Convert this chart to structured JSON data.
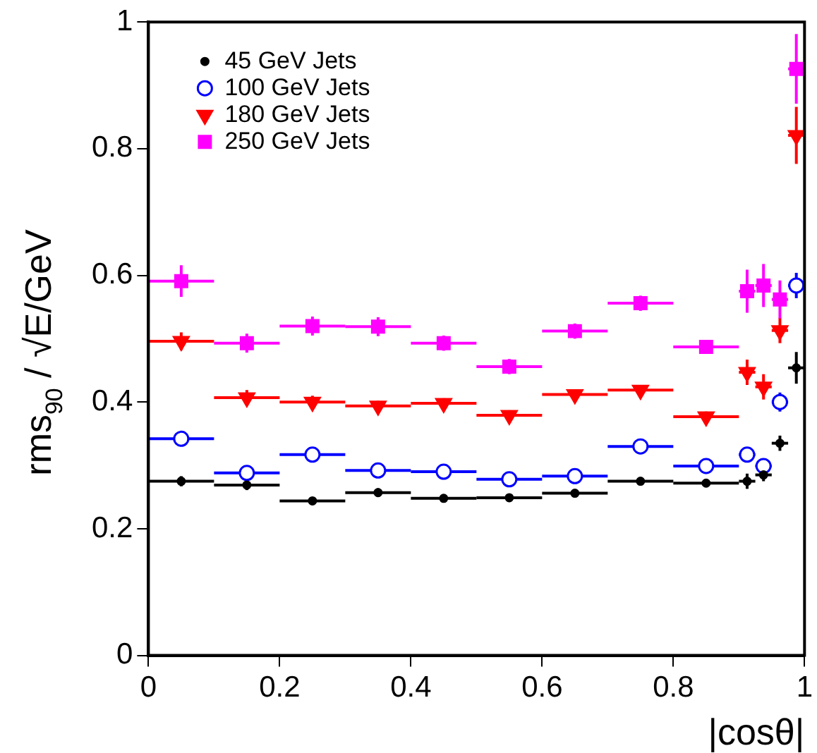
{
  "chart_data": {
    "type": "scatter",
    "xlabel": "|cosθ|",
    "ylabel": "rms$_{90}$ / √E/GeV",
    "xlim": [
      0,
      1
    ],
    "xticks": [
      0,
      0.2,
      0.4,
      0.6,
      0.8,
      1
    ],
    "ylim": [
      0,
      1
    ],
    "yticks": [
      0,
      0.2,
      0.4,
      0.6,
      0.8,
      1
    ],
    "legend": "top left",
    "x": [
      0.05,
      0.15,
      0.25,
      0.35,
      0.45,
      0.55,
      0.65,
      0.75,
      0.85,
      0.9125,
      0.9375,
      0.9625,
      0.9875
    ],
    "series": [
      {
        "name": "45 GeV Jets",
        "color": "#000000",
        "marker": "circle",
        "xerrors": [
          0.05,
          0.05,
          0.05,
          0.05,
          0.05,
          0.05,
          0.05,
          0.05,
          0.05,
          0.0125,
          0.0125,
          0.0125,
          0.0125
        ],
        "values": [
          0.275,
          0.269,
          0.244,
          0.257,
          0.248,
          0.249,
          0.256,
          0.275,
          0.272,
          0.275,
          0.285,
          0.335,
          0.454
        ],
        "errors": [
          0.008,
          0.008,
          0.006,
          0.007,
          0.006,
          0.006,
          0.006,
          0.006,
          0.006,
          0.012,
          0.01,
          0.012,
          0.025
        ]
      },
      {
        "name": "100 GeV Jets",
        "color": "#0000ff",
        "marker": "circle-open",
        "xerrors": [
          0.05,
          0.05,
          0.05,
          0.05,
          0.05,
          0.05,
          0.05,
          0.05,
          0.05,
          0.0125,
          0.0125,
          0.0125,
          0.0125
        ],
        "values": [
          0.342,
          0.288,
          0.317,
          0.292,
          0.29,
          0.278,
          0.283,
          0.33,
          0.299,
          0.317,
          0.299,
          0.4,
          0.584
        ],
        "errors": [
          0.006,
          0.006,
          0.006,
          0.006,
          0.006,
          0.006,
          0.006,
          0.006,
          0.006,
          0.012,
          0.012,
          0.015,
          0.02
        ]
      },
      {
        "name": "180 GeV Jets",
        "color": "#ff0000",
        "marker": "triangle-down",
        "xerrors": [
          0.05,
          0.05,
          0.05,
          0.05,
          0.05,
          0.05,
          0.05,
          0.05,
          0.05,
          0.0125,
          0.0125,
          0.0125,
          0.0125
        ],
        "values": [
          0.496,
          0.407,
          0.4,
          0.394,
          0.398,
          0.379,
          0.412,
          0.419,
          0.377,
          0.447,
          0.424,
          0.513,
          0.821
        ],
        "errors": [
          0.014,
          0.012,
          0.01,
          0.008,
          0.008,
          0.008,
          0.008,
          0.008,
          0.008,
          0.02,
          0.02,
          0.02,
          0.045
        ]
      },
      {
        "name": "250 GeV Jets",
        "color": "#ff00ff",
        "marker": "square",
        "xerrors": [
          0.05,
          0.05,
          0.05,
          0.05,
          0.05,
          0.05,
          0.05,
          0.05,
          0.05,
          0.0125,
          0.0125,
          0.0125,
          0.0125
        ],
        "values": [
          0.591,
          0.493,
          0.52,
          0.519,
          0.493,
          0.456,
          0.512,
          0.556,
          0.487,
          0.575,
          0.584,
          0.562,
          0.926
        ],
        "errors": [
          0.025,
          0.015,
          0.015,
          0.015,
          0.012,
          0.012,
          0.012,
          0.012,
          0.01,
          0.034,
          0.034,
          0.03,
          0.055
        ]
      }
    ]
  }
}
